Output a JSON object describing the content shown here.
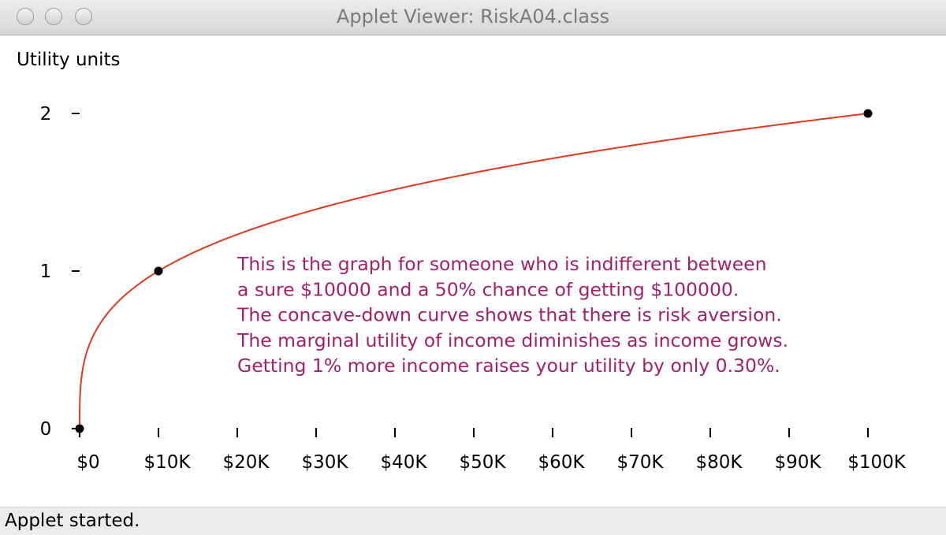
{
  "window": {
    "title": "Applet Viewer: RiskA04.class",
    "status": "Applet started."
  },
  "chart_data": {
    "type": "line",
    "ylabel": "Utility units",
    "xlabel": "",
    "x_ticks": [
      "$0",
      "$10K",
      "$20K",
      "$30K",
      "$40K",
      "$50K",
      "$60K",
      "$70K",
      "$80K",
      "$90K",
      "$100K"
    ],
    "y_ticks": [
      "0",
      "1",
      "2"
    ],
    "xlim": [
      0,
      100000
    ],
    "ylim": [
      0,
      2
    ],
    "exponent": 0.30103,
    "points": [
      {
        "x": 0,
        "y": 0
      },
      {
        "x": 10000,
        "y": 1
      },
      {
        "x": 100000,
        "y": 2
      }
    ],
    "curve_color": "#e03a1e",
    "annotation_color": "#a3206a",
    "annotation": [
      "This is the graph for someone who is indifferent between",
      "a sure $10000 and a 50% chance of getting $100000.",
      "The concave-down curve shows that there is risk aversion.",
      "The marginal utility of income diminishes as income grows.",
      "Getting 1% more income raises your utility by only 0.30%."
    ]
  }
}
